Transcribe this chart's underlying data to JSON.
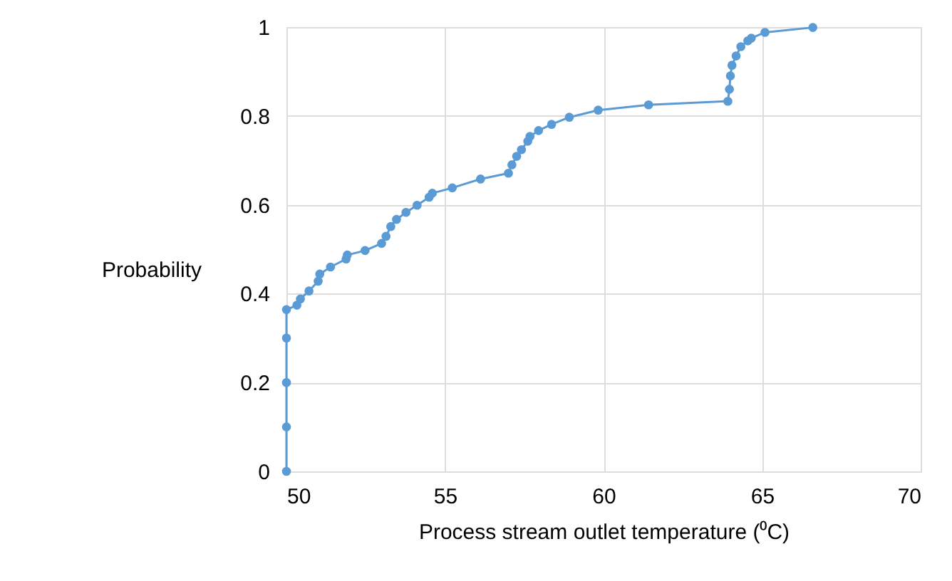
{
  "chart_data": {
    "type": "line",
    "xlabel": "Process stream outlet temperature (⁰C)",
    "ylabel": "Probability",
    "xlim": [
      50,
      70
    ],
    "xticks": [
      50,
      55,
      60,
      65,
      70
    ],
    "ylim": [
      0,
      1
    ],
    "yticks": [
      0,
      0.2,
      0.4,
      0.6,
      0.8,
      1
    ],
    "grid": true,
    "marker": "circle",
    "line_style": "solid",
    "series": [
      {
        "color": "#5b9bd5",
        "x": [
          50,
          50,
          50,
          50,
          50,
          50.33,
          50.44,
          50.71,
          51.0,
          51.05,
          51.39,
          51.88,
          51.92,
          52.48,
          53.0,
          53.14,
          53.29,
          53.47,
          53.77,
          54.12,
          54.5,
          54.6,
          55.23,
          56.12,
          57.0,
          57.11,
          57.26,
          57.41,
          57.61,
          57.68,
          57.95,
          58.36,
          58.92,
          59.83,
          61.42,
          63.92,
          63.97,
          64.0,
          64.05,
          64.18,
          64.33,
          64.55,
          64.66,
          65.09,
          66.6
        ],
        "values": [
          0,
          0.1,
          0.2,
          0.3,
          0.364,
          0.374,
          0.388,
          0.406,
          0.428,
          0.444,
          0.46,
          0.478,
          0.487,
          0.497,
          0.513,
          0.529,
          0.551,
          0.567,
          0.583,
          0.599,
          0.617,
          0.626,
          0.638,
          0.658,
          0.671,
          0.69,
          0.709,
          0.724,
          0.743,
          0.754,
          0.767,
          0.781,
          0.797,
          0.813,
          0.825,
          0.833,
          0.86,
          0.89,
          0.914,
          0.935,
          0.956,
          0.969,
          0.975,
          0.988,
          0.999
        ]
      }
    ]
  }
}
